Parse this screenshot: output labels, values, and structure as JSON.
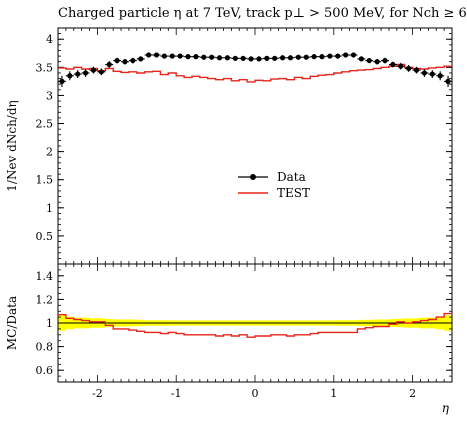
{
  "chart_data": [
    {
      "type": "scatter",
      "panel": "main",
      "title": "Charged particle η at 7 TeV, track p⊥ > 500 MeV, for Nch ≥ 6",
      "ylabel": "1/Nev dNch/dη",
      "xlim": [
        -2.5,
        2.5
      ],
      "ylim": [
        0,
        4.2
      ],
      "yticks": [
        0.5,
        1,
        1.5,
        2,
        2.5,
        3,
        3.5,
        4
      ],
      "legend_position": "center-right",
      "x": [
        -2.45,
        -2.35,
        -2.25,
        -2.15,
        -2.05,
        -1.95,
        -1.85,
        -1.75,
        -1.65,
        -1.55,
        -1.45,
        -1.35,
        -1.25,
        -1.15,
        -1.05,
        -0.95,
        -0.85,
        -0.75,
        -0.65,
        -0.55,
        -0.45,
        -0.35,
        -0.25,
        -0.15,
        -0.05,
        0.05,
        0.15,
        0.25,
        0.35,
        0.45,
        0.55,
        0.65,
        0.75,
        0.85,
        0.95,
        1.05,
        1.15,
        1.25,
        1.35,
        1.45,
        1.55,
        1.65,
        1.75,
        1.85,
        1.95,
        2.05,
        2.15,
        2.25,
        2.35,
        2.45
      ],
      "series": [
        {
          "name": "Data",
          "color": "#000000",
          "values": [
            3.25,
            3.35,
            3.38,
            3.4,
            3.45,
            3.42,
            3.55,
            3.62,
            3.6,
            3.62,
            3.65,
            3.72,
            3.72,
            3.7,
            3.7,
            3.7,
            3.69,
            3.69,
            3.68,
            3.68,
            3.67,
            3.67,
            3.66,
            3.66,
            3.65,
            3.65,
            3.66,
            3.66,
            3.67,
            3.67,
            3.68,
            3.68,
            3.69,
            3.69,
            3.7,
            3.7,
            3.72,
            3.72,
            3.65,
            3.62,
            3.6,
            3.62,
            3.55,
            3.52,
            3.48,
            3.45,
            3.4,
            3.38,
            3.35,
            3.25
          ],
          "errors": [
            0.1,
            0.08,
            0.07,
            0.07,
            0.06,
            0.06,
            0.06,
            0.05,
            0.05,
            0.05,
            0.04,
            0.04,
            0.04,
            0.04,
            0.03,
            0.03,
            0.03,
            0.03,
            0.03,
            0.03,
            0.03,
            0.03,
            0.03,
            0.03,
            0.03,
            0.03,
            0.03,
            0.03,
            0.03,
            0.03,
            0.03,
            0.03,
            0.03,
            0.03,
            0.03,
            0.04,
            0.04,
            0.04,
            0.04,
            0.04,
            0.05,
            0.05,
            0.05,
            0.06,
            0.06,
            0.06,
            0.07,
            0.07,
            0.08,
            0.1
          ]
        },
        {
          "name": "TEST",
          "color": "#e8251c",
          "values": [
            3.49,
            3.47,
            3.5,
            3.47,
            3.48,
            3.44,
            3.48,
            3.43,
            3.41,
            3.42,
            3.4,
            3.42,
            3.43,
            3.37,
            3.4,
            3.35,
            3.32,
            3.34,
            3.32,
            3.3,
            3.28,
            3.3,
            3.26,
            3.28,
            3.24,
            3.27,
            3.26,
            3.29,
            3.3,
            3.28,
            3.32,
            3.3,
            3.34,
            3.36,
            3.37,
            3.4,
            3.42,
            3.44,
            3.45,
            3.46,
            3.48,
            3.5,
            3.52,
            3.55,
            3.5,
            3.48,
            3.47,
            3.49,
            3.5,
            3.52
          ]
        }
      ]
    },
    {
      "type": "line",
      "panel": "ratio",
      "xlabel": "η",
      "ylabel": "MC/Data",
      "xlim": [
        -2.5,
        2.5
      ],
      "ylim": [
        0.5,
        1.5
      ],
      "xticks": [
        -2,
        -1,
        0,
        1,
        2
      ],
      "yticks": [
        0.6,
        0.8,
        1,
        1.2,
        1.4
      ],
      "band_color": "#ffff00",
      "band_halfwidth": [
        0.066,
        0.053,
        0.046,
        0.046,
        0.041,
        0.041,
        0.034,
        0.03,
        0.03,
        0.03,
        0.026,
        0.024,
        0.024,
        0.024,
        0.022,
        0.022,
        0.022,
        0.022,
        0.022,
        0.022,
        0.022,
        0.022,
        0.022,
        0.022,
        0.022,
        0.022,
        0.022,
        0.022,
        0.022,
        0.022,
        0.022,
        0.022,
        0.022,
        0.022,
        0.022,
        0.024,
        0.024,
        0.024,
        0.026,
        0.026,
        0.03,
        0.03,
        0.034,
        0.036,
        0.041,
        0.041,
        0.046,
        0.046,
        0.053,
        0.066
      ],
      "series": [
        {
          "name": "TEST",
          "color": "#e8251c",
          "values": [
            1.07,
            1.04,
            1.03,
            1.02,
            1.01,
            1.01,
            0.98,
            0.95,
            0.95,
            0.94,
            0.93,
            0.92,
            0.92,
            0.91,
            0.92,
            0.91,
            0.9,
            0.9,
            0.9,
            0.9,
            0.89,
            0.9,
            0.89,
            0.9,
            0.88,
            0.89,
            0.89,
            0.9,
            0.9,
            0.89,
            0.9,
            0.9,
            0.91,
            0.92,
            0.92,
            0.92,
            0.92,
            0.92,
            0.95,
            0.96,
            0.97,
            0.97,
            0.99,
            1.01,
            1.0,
            1.01,
            1.02,
            1.03,
            1.05,
            1.08
          ]
        }
      ]
    }
  ]
}
